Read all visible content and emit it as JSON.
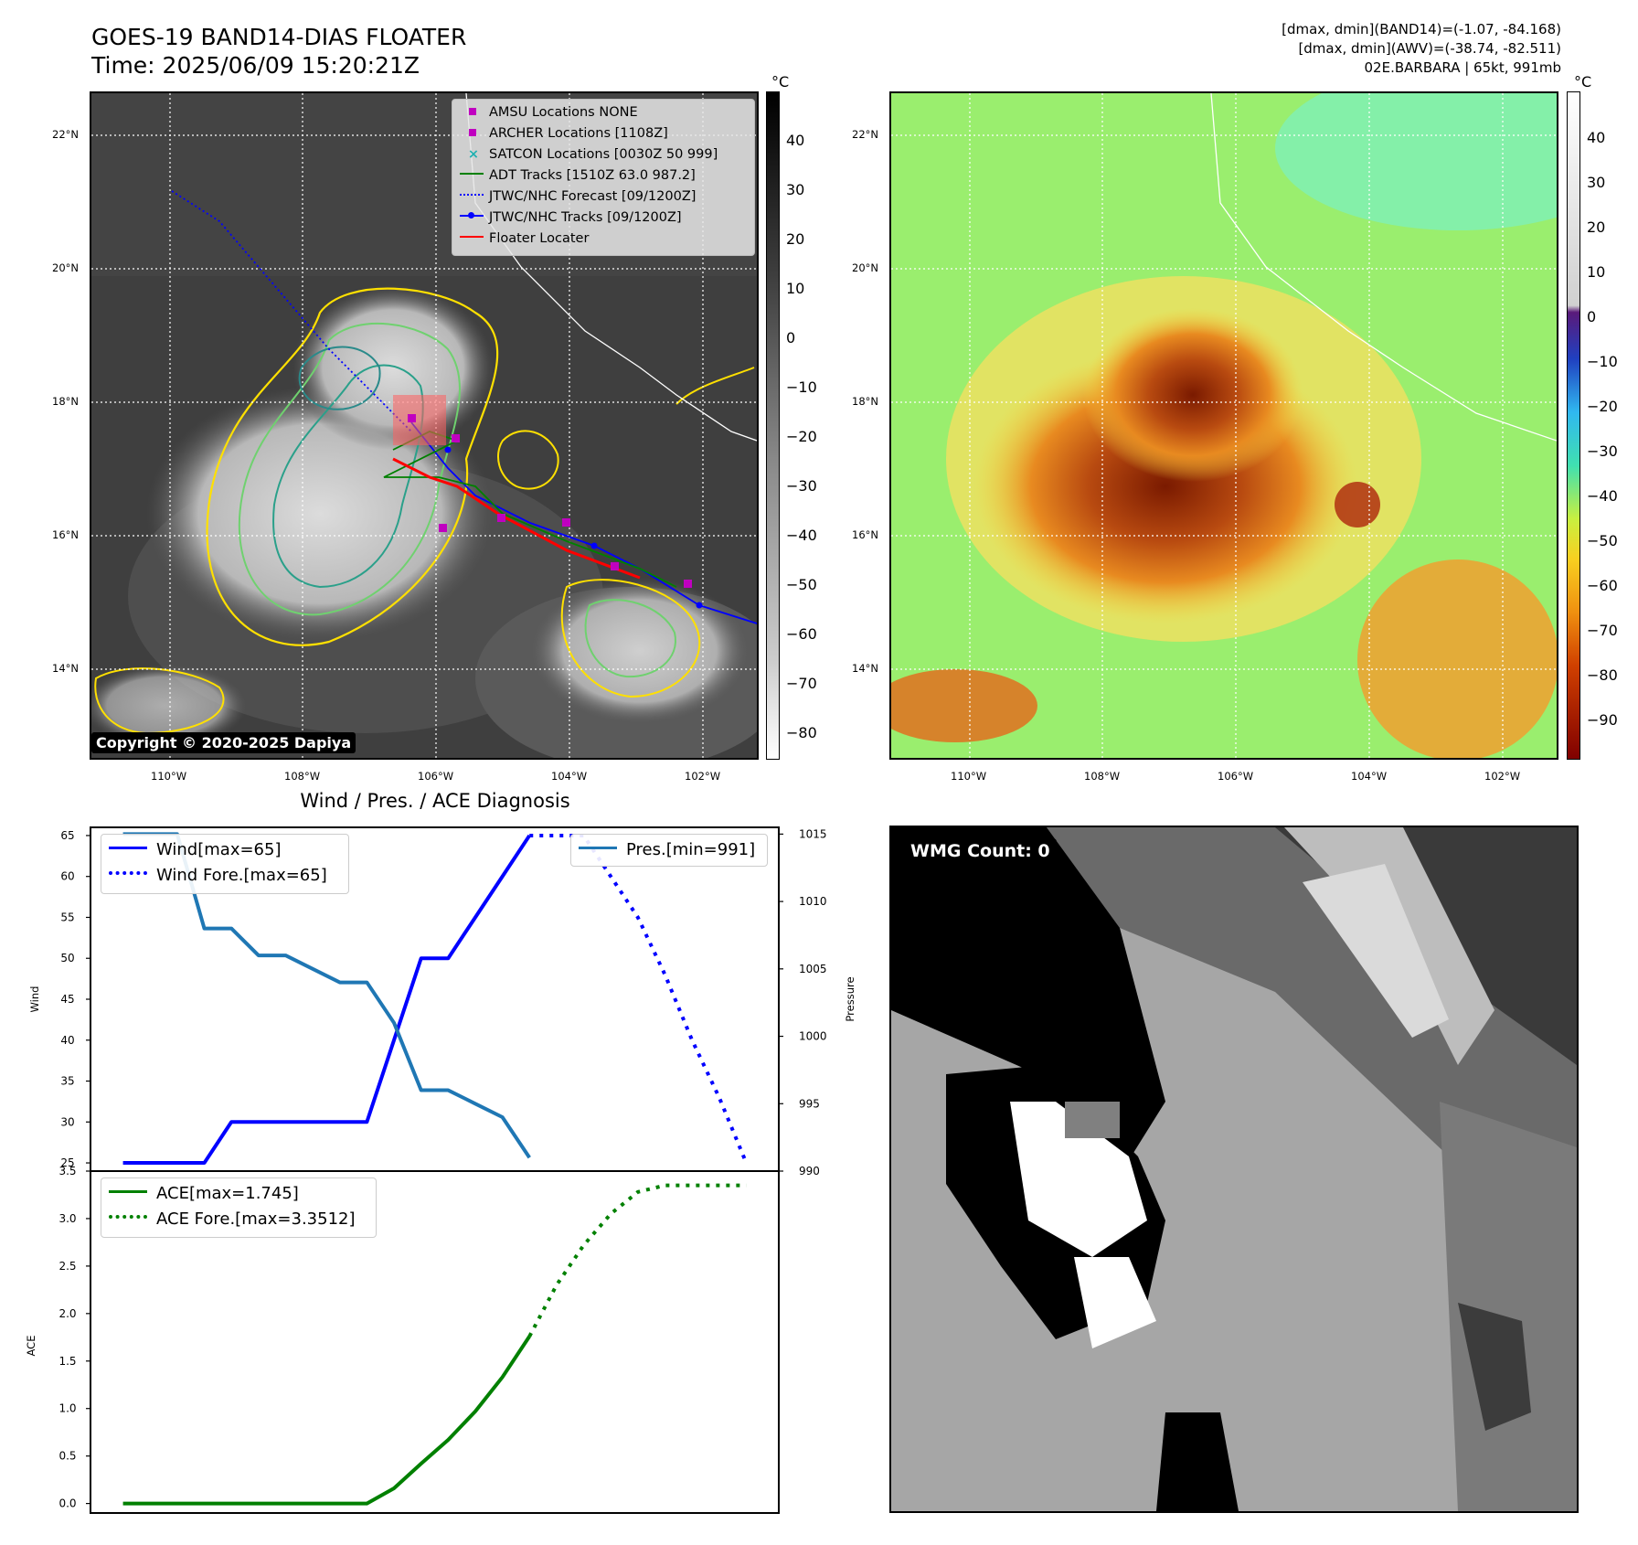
{
  "header": {
    "title": "GOES-19 BAND14-DIAS FLOATER",
    "time": "Time: 2025/06/09 15:20:21Z",
    "dmax_band14": "[dmax, dmin](BAND14)=(-1.07, -84.168)",
    "dmax_awv": "[dmax, dmin](AWV)=(-38.74, -82.511)",
    "storm": "02E.BARBARA | 65kt, 991mb"
  },
  "map": {
    "lat_labels": [
      "22°N",
      "20°N",
      "18°N",
      "16°N",
      "14°N"
    ],
    "lon_labels": [
      "110°W",
      "108°W",
      "106°W",
      "104°W",
      "102°W"
    ],
    "copyright": "Copyright © 2020-2025 Dapiya",
    "legend": [
      {
        "label": "AMSU Locations NONE",
        "marker": "square",
        "color": "#c000c0"
      },
      {
        "label": "ARCHER Locations [1108Z]",
        "marker": "square",
        "color": "#c000c0"
      },
      {
        "label": "SATCON Locations [0030Z 50 999]",
        "marker": "x",
        "color": "#20b0b0"
      },
      {
        "label": "ADT Tracks [1510Z 63.0 987.2]",
        "marker": "line",
        "color": "#008000"
      },
      {
        "label": "JTWC/NHC Forecast [09/1200Z]",
        "marker": "dotted",
        "color": "#0000ff"
      },
      {
        "label": "JTWC/NHC Tracks [09/1200Z]",
        "marker": "line-dot",
        "color": "#0000ff"
      },
      {
        "label": "Floater Locater",
        "marker": "line",
        "color": "#ff0000"
      }
    ],
    "colorbar_unit": "°C",
    "gray_colorbar_ticks": [
      "40",
      "30",
      "20",
      "10",
      "0",
      "−10",
      "−20",
      "−30",
      "−40",
      "−50",
      "−60",
      "−70",
      "−80"
    ],
    "color_colorbar_ticks": [
      "40",
      "30",
      "20",
      "10",
      "0",
      "−10",
      "−20",
      "−30",
      "−40",
      "−50",
      "−60",
      "−70",
      "−80",
      "−90"
    ]
  },
  "diagnosis": {
    "title": "Wind / Pres. / ACE Diagnosis",
    "wind_ylabel": "Wind",
    "pressure_ylabel": "Pressure",
    "ace_ylabel": "ACE",
    "wmg_count": "WMG Count: 0"
  },
  "chart_data": [
    {
      "type": "line",
      "title": "Wind / Pres. / ACE Diagnosis",
      "ylabel": "Wind",
      "y2label": "Pressure",
      "ylim": [
        24,
        66
      ],
      "y2lim": [
        990,
        1015.5
      ],
      "yticks": [
        25,
        30,
        35,
        40,
        45,
        50,
        55,
        60,
        65
      ],
      "y2ticks": [
        990,
        995,
        1000,
        1005,
        1010,
        1015
      ],
      "series": [
        {
          "name": "Wind[max=65]",
          "color": "#0000ff",
          "style": "solid",
          "axis": "left",
          "x": [
            0,
            3,
            4,
            5,
            6,
            7,
            8,
            9,
            10,
            11,
            12,
            13,
            14,
            15
          ],
          "y": [
            25,
            25,
            30,
            30,
            30,
            30,
            30,
            30,
            40,
            50,
            50,
            55,
            60,
            65
          ]
        },
        {
          "name": "Wind Fore.[max=65]",
          "color": "#0000ff",
          "style": "dotted",
          "axis": "left",
          "x": [
            15,
            16,
            17,
            18,
            19,
            20,
            21,
            22,
            23
          ],
          "y": [
            65,
            65,
            65,
            60,
            55,
            48,
            40,
            33,
            25
          ]
        },
        {
          "name": "Pres.[min=991]",
          "color": "#1f77b4",
          "style": "solid",
          "axis": "right",
          "x": [
            0,
            2,
            3,
            4,
            5,
            6,
            7,
            8,
            9,
            10,
            11,
            12,
            13,
            14,
            15
          ],
          "y": [
            1015,
            1015,
            1008,
            1008,
            1006,
            1006,
            1005,
            1004,
            1004,
            1001,
            996,
            996,
            995,
            994,
            991
          ]
        }
      ]
    },
    {
      "type": "line",
      "ylabel": "ACE",
      "ylim": [
        -0.1,
        3.5
      ],
      "yticks": [
        0.0,
        0.5,
        1.0,
        1.5,
        2.0,
        2.5,
        3.0,
        3.5
      ],
      "series": [
        {
          "name": "ACE[max=1.745]",
          "color": "#008000",
          "style": "solid",
          "x": [
            0,
            2,
            4,
            6,
            8,
            9,
            10,
            11,
            12,
            13,
            14,
            15
          ],
          "y": [
            0,
            0,
            0,
            0,
            0,
            0,
            0.16,
            0.42,
            0.67,
            0.97,
            1.33,
            1.76
          ]
        },
        {
          "name": "ACE Fore.[max=3.3512]",
          "color": "#008000",
          "style": "dotted",
          "x": [
            15,
            16,
            17,
            18,
            19,
            20,
            21,
            22,
            23
          ],
          "y": [
            1.76,
            2.3,
            2.72,
            3.05,
            3.28,
            3.35,
            3.35,
            3.35,
            3.35
          ]
        }
      ]
    }
  ]
}
